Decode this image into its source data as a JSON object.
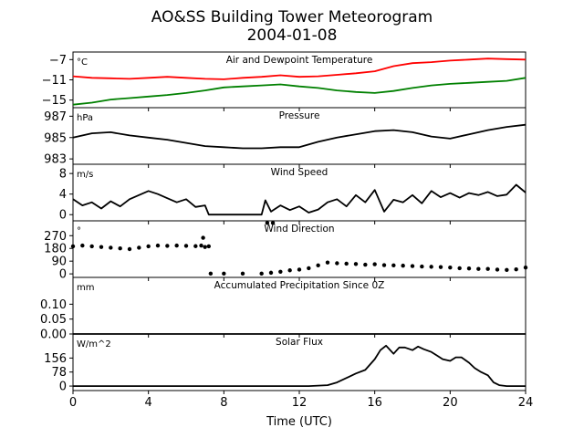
{
  "chart_data": {
    "type": "line",
    "title": "AO&SS Building Tower Meteorogram",
    "subtitle": "2004-01-08",
    "xlabel": "Time (UTC)",
    "xlim": [
      0,
      24
    ],
    "xticks": [
      "0",
      "4",
      "8",
      "12",
      "16",
      "20",
      "24"
    ],
    "panels": [
      {
        "title": "Air and Dewpoint Temperature",
        "unit": "°C",
        "ylim": [
          -16.5,
          -5.5
        ],
        "yticks": [
          -7,
          -11,
          -15
        ],
        "ytick_labels": [
          "−7",
          "−11",
          "−15"
        ],
        "series": [
          {
            "color": "#ff0000",
            "x": [
              0,
              1,
              2,
              3,
              4,
              5,
              6,
              7,
              8,
              9,
              10,
              11,
              12,
              13,
              14,
              15,
              16,
              17,
              18,
              19,
              20,
              21,
              22,
              23,
              24
            ],
            "y": [
              -10.3,
              -10.6,
              -10.7,
              -10.8,
              -10.6,
              -10.4,
              -10.6,
              -10.8,
              -10.9,
              -10.6,
              -10.4,
              -10.1,
              -10.4,
              -10.3,
              -10.0,
              -9.7,
              -9.3,
              -8.3,
              -7.7,
              -7.5,
              -7.2,
              -7.0,
              -6.8,
              -6.9,
              -7.0
            ]
          },
          {
            "color": "#008000",
            "x": [
              0,
              1,
              2,
              3,
              4,
              5,
              6,
              7,
              8,
              9,
              10,
              11,
              12,
              13,
              14,
              15,
              16,
              17,
              18,
              19,
              20,
              21,
              22,
              23,
              24
            ],
            "y": [
              -15.9,
              -15.5,
              -14.9,
              -14.6,
              -14.3,
              -14.0,
              -13.6,
              -13.1,
              -12.5,
              -12.3,
              -12.1,
              -11.9,
              -12.3,
              -12.6,
              -13.1,
              -13.4,
              -13.6,
              -13.2,
              -12.6,
              -12.1,
              -11.8,
              -11.6,
              -11.4,
              -11.2,
              -10.6
            ]
          }
        ]
      },
      {
        "title": "Pressure",
        "unit": "hPa",
        "ylim": [
          982.5,
          987.8
        ],
        "yticks": [
          987,
          985,
          983
        ],
        "ytick_labels": [
          "987",
          "985",
          "983"
        ],
        "series": [
          {
            "color": "#000000",
            "x": [
              0,
              1,
              2,
              3,
              4,
              5,
              6,
              7,
              8,
              9,
              10,
              11,
              12,
              13,
              14,
              15,
              16,
              17,
              18,
              19,
              20,
              21,
              22,
              23,
              24
            ],
            "y": [
              985.0,
              985.4,
              985.5,
              985.2,
              985.0,
              984.8,
              984.5,
              984.2,
              984.1,
              984.0,
              984.0,
              984.1,
              984.1,
              984.6,
              985.0,
              985.3,
              985.6,
              985.7,
              985.5,
              985.1,
              984.9,
              985.3,
              985.7,
              986.0,
              986.2
            ]
          }
        ]
      },
      {
        "title": "Wind Speed",
        "unit": "m/s",
        "ylim": [
          -1.2,
          9.8
        ],
        "yticks": [
          8,
          4,
          0
        ],
        "ytick_labels": [
          "8",
          "4",
          "0"
        ],
        "series": [
          {
            "color": "#000000",
            "x": [
              0,
              0.5,
              1,
              1.5,
              2,
              2.5,
              3,
              3.5,
              4,
              4.5,
              5,
              5.5,
              6,
              6.5,
              7,
              7.2,
              8,
              9,
              10,
              10.2,
              10.5,
              11,
              11.5,
              12,
              12.5,
              13,
              13.5,
              14,
              14.5,
              15,
              15.5,
              16,
              16.5,
              17,
              17.5,
              18,
              18.5,
              19,
              19.5,
              20,
              20.5,
              21,
              21.5,
              22,
              22.5,
              23,
              23.5,
              24
            ],
            "y": [
              3.0,
              1.8,
              2.4,
              1.2,
              2.6,
              1.6,
              3.0,
              3.8,
              4.6,
              4.0,
              3.2,
              2.4,
              3.0,
              1.5,
              1.8,
              0.0,
              0.0,
              0.0,
              0.0,
              2.8,
              0.6,
              1.8,
              0.9,
              1.6,
              0.4,
              1.0,
              2.4,
              3.0,
              1.6,
              3.8,
              2.4,
              4.8,
              0.6,
              2.9,
              2.4,
              3.8,
              2.2,
              4.6,
              3.4,
              4.2,
              3.3,
              4.2,
              3.8,
              4.4,
              3.6,
              3.9,
              5.8,
              4.3
            ]
          }
        ]
      },
      {
        "title": "Wind Direction",
        "unit": "°",
        "style": "dots",
        "ylim": [
          -25,
          375
        ],
        "yticks": [
          270,
          180,
          90,
          0
        ],
        "ytick_labels": [
          "270",
          "180",
          "90",
          "0"
        ],
        "series": [
          {
            "color": "#000000",
            "x": [
              0,
              0.5,
              1,
              1.5,
              2,
              2.5,
              3,
              3.5,
              4,
              4.5,
              5,
              5.5,
              6,
              6.5,
              6.8,
              7,
              7.2,
              6.9,
              7.3,
              8,
              9,
              10,
              10.5,
              11,
              11.5,
              12,
              12.5,
              13,
              13.5,
              14,
              14.5,
              15,
              15.5,
              16,
              16.5,
              17,
              17.5,
              18,
              18.5,
              19,
              19.5,
              20,
              20.5,
              21,
              21.5,
              22,
              22.5,
              23,
              23.5,
              24,
              10.3,
              10.6
            ],
            "y": [
              195,
              200,
              195,
              190,
              185,
              180,
              175,
              185,
              195,
              200,
              198,
              200,
              198,
              196,
              200,
              190,
              195,
              255,
              2,
              2,
              2,
              2,
              8,
              15,
              25,
              30,
              40,
              60,
              80,
              75,
              72,
              70,
              65,
              68,
              62,
              60,
              58,
              55,
              52,
              50,
              48,
              45,
              40,
              38,
              35,
              35,
              30,
              28,
              32,
              45,
              360,
              360
            ]
          }
        ]
      },
      {
        "title": "Accumulated Precipitation Since 0Z",
        "unit": "mm",
        "ylim": [
          0,
          0.19
        ],
        "yticks": [
          0.1,
          0.05,
          0.0
        ],
        "ytick_labels": [
          "0.10",
          "0.05",
          "0.00"
        ],
        "series": [
          {
            "color": "#000000",
            "x": [
              0,
              24
            ],
            "y": [
              0,
              0
            ]
          }
        ]
      },
      {
        "title": "Solar Flux",
        "unit": "W/m^2",
        "ylim": [
          -25,
          290
        ],
        "yticks": [
          156,
          78,
          0
        ],
        "ytick_labels": [
          "156",
          "78",
          "0"
        ],
        "series": [
          {
            "color": "#000000",
            "x": [
              0,
              12.5,
              13.5,
              14,
              14.5,
              15,
              15.5,
              16,
              16.3,
              16.6,
              17,
              17.3,
              17.6,
              18,
              18.3,
              18.6,
              19,
              19.3,
              19.6,
              20,
              20.3,
              20.6,
              21,
              21.3,
              21.6,
              22,
              22.3,
              22.6,
              23,
              24
            ],
            "y": [
              0,
              0,
              5,
              20,
              45,
              70,
              90,
              150,
              200,
              225,
              180,
              215,
              215,
              200,
              220,
              205,
              190,
              170,
              150,
              140,
              160,
              160,
              130,
              100,
              80,
              60,
              20,
              5,
              0,
              0
            ]
          }
        ]
      }
    ]
  }
}
